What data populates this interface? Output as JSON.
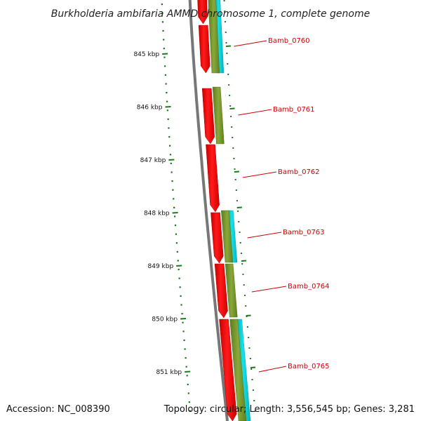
{
  "header": {
    "title": "Burkholderia ambifaria AMMD chromosome 1, complete genome"
  },
  "footer": {
    "accession": "Accession: NC_008390",
    "summary": "Topology: circular; Length: 3,556,545 bp; Genes: 3,281"
  },
  "ruler": {
    "ticks": [
      {
        "label": "845 kbp",
        "kbp": 845
      },
      {
        "label": "846 kbp",
        "kbp": 846
      },
      {
        "label": "847 kbp",
        "kbp": 847
      },
      {
        "label": "848 kbp",
        "kbp": 848
      },
      {
        "label": "849 kbp",
        "kbp": 849
      },
      {
        "label": "850 kbp",
        "kbp": 850
      },
      {
        "label": "851 kbp",
        "kbp": 851
      }
    ]
  },
  "genes": [
    {
      "label": "Bamb_0760"
    },
    {
      "label": "Bamb_0761"
    },
    {
      "label": "Bamb_0762"
    },
    {
      "label": "Bamb_0763"
    },
    {
      "label": "Bamb_0764"
    },
    {
      "label": "Bamb_0765"
    }
  ],
  "colors": {
    "gene": "#ff0000",
    "cds": "#6b8e23",
    "feature": "#00cccc",
    "backbone": "#777777",
    "ruler": "#1a7a1a",
    "leader": "#cc0000"
  }
}
